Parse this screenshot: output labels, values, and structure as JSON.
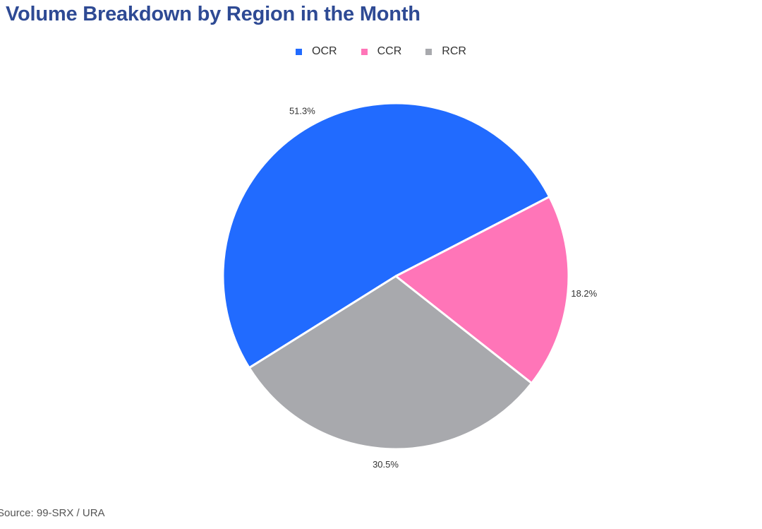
{
  "header": {
    "title": "Volume Breakdown by Region in the Month"
  },
  "footer": {
    "source": "Source: 99-SRX / URA"
  },
  "chart_data": {
    "type": "pie",
    "title": "Volume Breakdown by Region in the Month",
    "legend_position": "top-center",
    "slices": [
      {
        "name": "OCR",
        "value": 51.3,
        "label": "51.3%",
        "color": "#216bff"
      },
      {
        "name": "CCR",
        "value": 18.2,
        "label": "18.2%",
        "color": "#ff75b8"
      },
      {
        "name": "RCR",
        "value": 30.5,
        "label": "30.5%",
        "color": "#a8a9ad"
      }
    ]
  }
}
